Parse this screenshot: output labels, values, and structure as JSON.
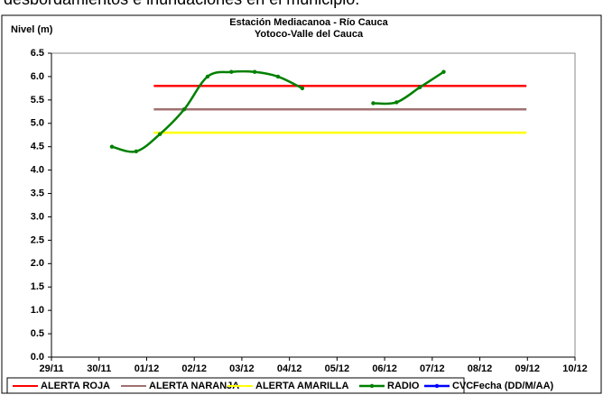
{
  "caption": "desbordamientos e inundaciones en el municipio.",
  "chart_data": {
    "type": "line",
    "title": "Estación Mediacanoa - Río Cauca",
    "subtitle": "Yotoco-Valle del Cauca",
    "y_label": "Nivel (m)",
    "x_label": "Fecha (DD/M/AA)",
    "xlim": [
      0,
      11
    ],
    "xticks": [
      {
        "value": 0,
        "label": "29/11"
      },
      {
        "value": 1,
        "label": "30/11"
      },
      {
        "value": 2,
        "label": "01/12"
      },
      {
        "value": 3,
        "label": "02/12"
      },
      {
        "value": 4,
        "label": "03/12"
      },
      {
        "value": 5,
        "label": "04/12"
      },
      {
        "value": 6,
        "label": "05/12"
      },
      {
        "value": 7,
        "label": "06/12"
      },
      {
        "value": 8,
        "label": "07/12"
      },
      {
        "value": 9,
        "label": "08/12"
      },
      {
        "value": 10,
        "label": "09/12"
      },
      {
        "value": 11,
        "label": "10/12"
      }
    ],
    "ylim": [
      0,
      6.5
    ],
    "yticks": [
      {
        "value": 0,
        "label": "0.0"
      },
      {
        "value": 0.5,
        "label": "0.5"
      },
      {
        "value": 1,
        "label": "1.0"
      },
      {
        "value": 1.5,
        "label": "1.5"
      },
      {
        "value": 2,
        "label": "2.0"
      },
      {
        "value": 2.5,
        "label": "2.5"
      },
      {
        "value": 3,
        "label": "3.0"
      },
      {
        "value": 3.5,
        "label": "3.5"
      },
      {
        "value": 4,
        "label": "4.0"
      },
      {
        "value": 4.5,
        "label": "4.5"
      },
      {
        "value": 5,
        "label": "5.0"
      },
      {
        "value": 5.5,
        "label": "5.5"
      },
      {
        "value": 6,
        "label": "6.0"
      },
      {
        "value": 6.5,
        "label": "6.5"
      }
    ],
    "grid": false,
    "legend": "bottom",
    "series": [
      {
        "name": "ALERTA ROJA",
        "color": "#ff0000",
        "markers": false,
        "x": [
          2.15,
          9.98
        ],
        "values": [
          5.8,
          5.8
        ]
      },
      {
        "name": "ALERTA NARANJA",
        "color": "#a07070",
        "markers": false,
        "x": [
          2.15,
          9.98
        ],
        "values": [
          5.3,
          5.3
        ]
      },
      {
        "name": "ALERTA AMARILLA",
        "color": "#ffff00",
        "markers": false,
        "x": [
          2.15,
          9.98
        ],
        "values": [
          4.8,
          4.8
        ]
      },
      {
        "name": "RADIO",
        "color": "#008000",
        "markers": true,
        "x": [
          1.27,
          1.78,
          2.28,
          2.79,
          3.28,
          3.78,
          4.27,
          4.76,
          5.27,
          null,
          6.76,
          7.25,
          7.74,
          8.24
        ],
        "values": [
          4.5,
          4.4,
          4.77,
          5.3,
          6.0,
          6.1,
          6.1,
          6.0,
          5.75,
          null,
          5.43,
          5.45,
          5.77,
          6.1
        ]
      },
      {
        "name": "CVC",
        "color": "#0000ff",
        "markers": true,
        "x": [],
        "values": []
      }
    ]
  }
}
